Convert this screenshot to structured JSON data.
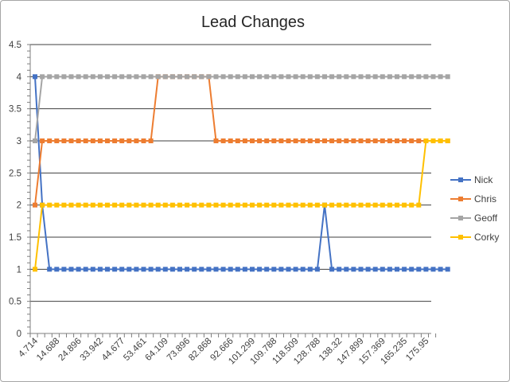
{
  "chart_data": {
    "type": "line",
    "title": "Lead Changes",
    "xlabel": "",
    "ylabel": "",
    "ylim": [
      0,
      4.5
    ],
    "ytick_step": 0.5,
    "y_ticks": [
      "0",
      "0.5",
      "1",
      "1.5",
      "2",
      "2.5",
      "3",
      "3.5",
      "4",
      "4.5"
    ],
    "grid": true,
    "legend_position": "right",
    "x_tick_labels": [
      "4.714",
      "14.688",
      "24.896",
      "33.942",
      "44.677",
      "53.461",
      "64.109",
      "73.896",
      "82.868",
      "92.666",
      "101.299",
      "109.788",
      "118.509",
      "128.788",
      "138.32",
      "147.899",
      "157.369",
      "165.235",
      "175.95"
    ],
    "x_category_count": 58,
    "x_label_every": 3,
    "series": [
      {
        "name": "Nick",
        "color": "#4472c4",
        "values": [
          4,
          2,
          1,
          1,
          1,
          1,
          1,
          1,
          1,
          1,
          1,
          1,
          1,
          1,
          1,
          1,
          1,
          1,
          1,
          1,
          1,
          1,
          1,
          1,
          1,
          1,
          1,
          1,
          1,
          1,
          1,
          1,
          1,
          1,
          1,
          1,
          1,
          1,
          1,
          1,
          2,
          1,
          1,
          1,
          1,
          1,
          1,
          1,
          1,
          1,
          1,
          1,
          1,
          1,
          1,
          1,
          1,
          1
        ]
      },
      {
        "name": "Chris",
        "color": "#ed7d31",
        "values": [
          2,
          3,
          3,
          3,
          3,
          3,
          3,
          3,
          3,
          3,
          3,
          3,
          3,
          3,
          3,
          3,
          3,
          4,
          4,
          4,
          4,
          4,
          4,
          4,
          4,
          3,
          3,
          3,
          3,
          3,
          3,
          3,
          3,
          3,
          3,
          3,
          3,
          3,
          3,
          3,
          3,
          3,
          3,
          3,
          3,
          3,
          3,
          3,
          3,
          3,
          3,
          3,
          3,
          3,
          3,
          3,
          3,
          3
        ]
      },
      {
        "name": "Geoff",
        "color": "#a5a5a5",
        "values": [
          3,
          4,
          4,
          4,
          4,
          4,
          4,
          4,
          4,
          4,
          4,
          4,
          4,
          4,
          4,
          4,
          4,
          4,
          4,
          4,
          4,
          4,
          4,
          4,
          4,
          4,
          4,
          4,
          4,
          4,
          4,
          4,
          4,
          4,
          4,
          4,
          4,
          4,
          4,
          4,
          4,
          4,
          4,
          4,
          4,
          4,
          4,
          4,
          4,
          4,
          4,
          4,
          4,
          4,
          4,
          4,
          4,
          4
        ]
      },
      {
        "name": "Corky",
        "color": "#ffc000",
        "values": [
          1,
          2,
          2,
          2,
          2,
          2,
          2,
          2,
          2,
          2,
          2,
          2,
          2,
          2,
          2,
          2,
          2,
          2,
          2,
          2,
          2,
          2,
          2,
          2,
          2,
          2,
          2,
          2,
          2,
          2,
          2,
          2,
          2,
          2,
          2,
          2,
          2,
          2,
          2,
          2,
          2,
          2,
          2,
          2,
          2,
          2,
          2,
          2,
          2,
          2,
          2,
          2,
          2,
          2,
          3,
          3,
          3,
          3
        ]
      }
    ]
  }
}
